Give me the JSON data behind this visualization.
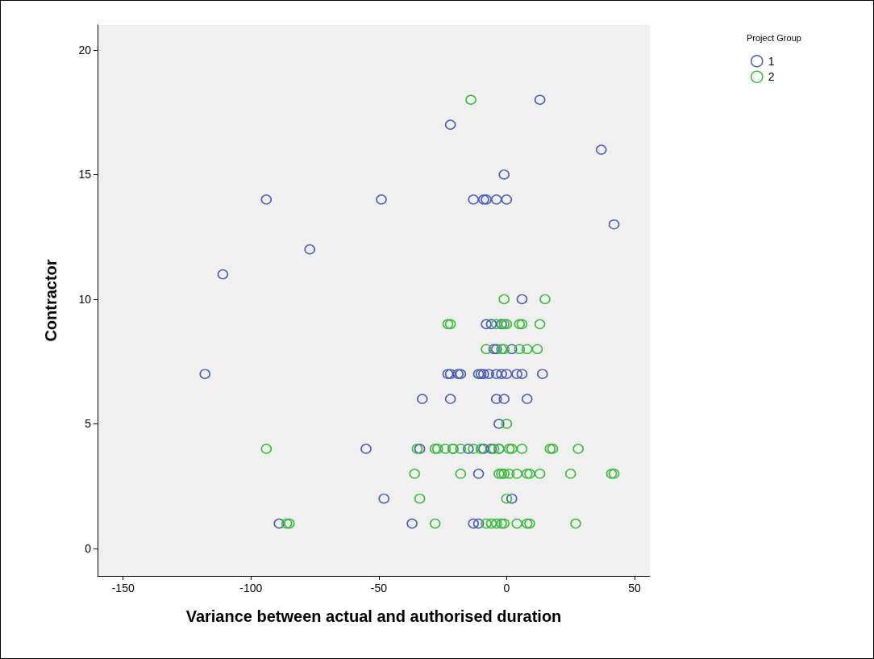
{
  "chart_data": {
    "type": "scatter",
    "xlabel": "Variance between actual and authorised duration",
    "ylabel": "Contractor",
    "legend_title": "Project Group",
    "legend": "top right",
    "grid": false,
    "marker": "circle",
    "xlim": [
      -160,
      56
    ],
    "xticks": [
      -150,
      -100,
      -50,
      0,
      50
    ],
    "ylim": [
      -1.1,
      21
    ],
    "yticks": [
      0,
      5,
      10,
      15,
      20
    ],
    "series": [
      {
        "name": "1",
        "color": "#4a5cb8",
        "x": [
          13,
          -22,
          37,
          -1,
          -94,
          -49,
          -13,
          -9,
          -8,
          -4,
          0,
          42,
          -77,
          -111,
          6,
          -8,
          -6,
          -2,
          -5,
          -4,
          2,
          -118,
          -23,
          -22,
          -19,
          -18,
          -11,
          -10,
          -9,
          -7,
          -4,
          -2,
          0,
          4,
          6,
          14,
          -33,
          -22,
          -4,
          -1,
          8,
          -3,
          -55,
          -34,
          -21,
          -15,
          -9,
          -6,
          -3,
          -11,
          -48,
          2,
          -89,
          -37,
          -13,
          -11
        ],
        "values": [
          18,
          17,
          16,
          15,
          14,
          14,
          14,
          14,
          14,
          14,
          14,
          13,
          12,
          11,
          10,
          9,
          9,
          9,
          8,
          8,
          8,
          7,
          7,
          7,
          7,
          7,
          7,
          7,
          7,
          7,
          7,
          7,
          7,
          7,
          7,
          7,
          6,
          6,
          6,
          6,
          6,
          5,
          4,
          4,
          4,
          4,
          4,
          4,
          4,
          3,
          2,
          2,
          1,
          1,
          1,
          1
        ]
      },
      {
        "name": "2",
        "color": "#3cba3c",
        "x": [
          -14,
          -1,
          15,
          -23,
          -22,
          -4,
          -1,
          0,
          5,
          6,
          13,
          -8,
          -2,
          -1,
          5,
          8,
          12,
          0,
          -94,
          -35,
          -28,
          -27,
          -24,
          -21,
          -18,
          -13,
          -10,
          -5,
          -3,
          1,
          2,
          6,
          17,
          18,
          28,
          -36,
          -18,
          -3,
          -2,
          -1,
          1,
          4,
          8,
          9,
          13,
          25,
          41,
          42,
          -34,
          0,
          -86,
          -85,
          -28,
          -8,
          -6,
          -4,
          -2,
          -1,
          4,
          8,
          9,
          27
        ],
        "values": [
          18,
          10,
          10,
          9,
          9,
          9,
          9,
          9,
          9,
          9,
          9,
          8,
          8,
          8,
          8,
          8,
          8,
          5,
          4,
          4,
          4,
          4,
          4,
          4,
          4,
          4,
          4,
          4,
          4,
          4,
          4,
          4,
          4,
          4,
          4,
          3,
          3,
          3,
          3,
          3,
          3,
          3,
          3,
          3,
          3,
          3,
          3,
          3,
          2,
          2,
          1,
          1,
          1,
          1,
          1,
          1,
          1,
          1,
          1,
          1,
          1,
          1
        ]
      }
    ]
  }
}
